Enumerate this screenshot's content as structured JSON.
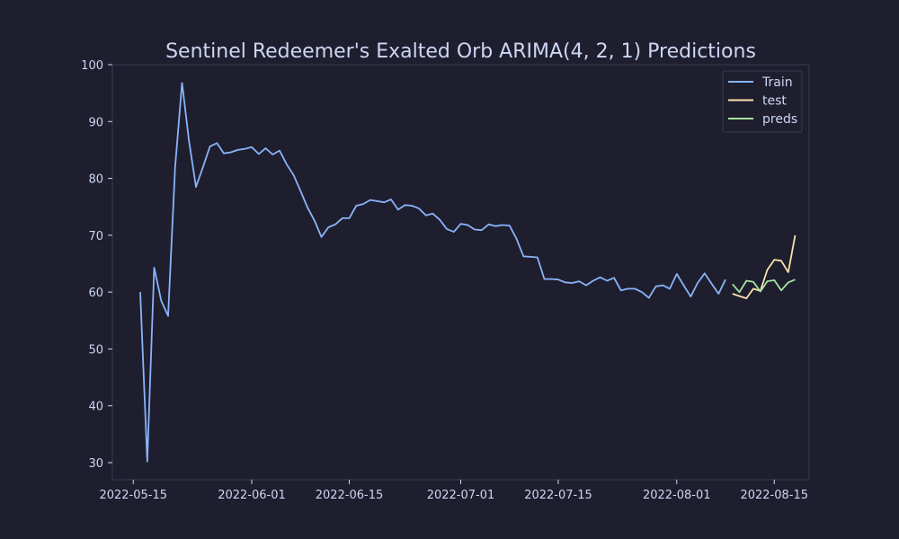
{
  "chart_data": {
    "type": "line",
    "title": "Sentinel Redeemer's Exalted Orb ARIMA(4, 2, 1) Predictions",
    "xlabel": "",
    "ylabel": "",
    "ylim": [
      27,
      100
    ],
    "xlim": [
      "2022-05-12",
      "2022-08-20"
    ],
    "yticks": [
      30,
      40,
      50,
      60,
      70,
      80,
      90,
      100
    ],
    "xticks": [
      "2022-05-15",
      "2022-06-01",
      "2022-06-15",
      "2022-07-01",
      "2022-07-15",
      "2022-08-01",
      "2022-08-15"
    ],
    "grid": false,
    "legend_position": "top-right",
    "series": [
      {
        "name": "Train",
        "color": "#89b4fa",
        "points": [
          [
            "2022-05-16",
            60.0
          ],
          [
            "2022-05-17",
            30.2
          ],
          [
            "2022-05-18",
            64.3
          ],
          [
            "2022-05-19",
            58.5
          ],
          [
            "2022-05-20",
            55.8
          ],
          [
            "2022-05-21",
            82.0
          ],
          [
            "2022-05-22",
            96.8
          ],
          [
            "2022-05-23",
            86.5
          ],
          [
            "2022-05-24",
            78.5
          ],
          [
            "2022-05-25",
            82.0
          ],
          [
            "2022-05-26",
            85.6
          ],
          [
            "2022-05-27",
            86.2
          ],
          [
            "2022-05-28",
            84.4
          ],
          [
            "2022-05-29",
            84.6
          ],
          [
            "2022-05-30",
            85.0
          ],
          [
            "2022-05-31",
            85.2
          ],
          [
            "2022-06-01",
            85.5
          ],
          [
            "2022-06-02",
            84.3
          ],
          [
            "2022-06-03",
            85.3
          ],
          [
            "2022-06-04",
            84.2
          ],
          [
            "2022-06-05",
            84.9
          ],
          [
            "2022-06-06",
            82.5
          ],
          [
            "2022-06-07",
            80.6
          ],
          [
            "2022-06-08",
            77.8
          ],
          [
            "2022-06-09",
            74.9
          ],
          [
            "2022-06-10",
            72.6
          ],
          [
            "2022-06-11",
            69.7
          ],
          [
            "2022-06-12",
            71.4
          ],
          [
            "2022-06-13",
            71.9
          ],
          [
            "2022-06-14",
            73.0
          ],
          [
            "2022-06-15",
            73.0
          ],
          [
            "2022-06-16",
            75.2
          ],
          [
            "2022-06-17",
            75.5
          ],
          [
            "2022-06-18",
            76.2
          ],
          [
            "2022-06-19",
            76.0
          ],
          [
            "2022-06-20",
            75.8
          ],
          [
            "2022-06-21",
            76.3
          ],
          [
            "2022-06-22",
            74.5
          ],
          [
            "2022-06-23",
            75.3
          ],
          [
            "2022-06-24",
            75.2
          ],
          [
            "2022-06-25",
            74.7
          ],
          [
            "2022-06-26",
            73.5
          ],
          [
            "2022-06-27",
            73.8
          ],
          [
            "2022-06-28",
            72.7
          ],
          [
            "2022-06-29",
            71.1
          ],
          [
            "2022-06-30",
            70.6
          ],
          [
            "2022-07-01",
            72.0
          ],
          [
            "2022-07-02",
            71.8
          ],
          [
            "2022-07-03",
            71.0
          ],
          [
            "2022-07-04",
            70.9
          ],
          [
            "2022-07-05",
            71.9
          ],
          [
            "2022-07-06",
            71.6
          ],
          [
            "2022-07-07",
            71.8
          ],
          [
            "2022-07-08",
            71.7
          ],
          [
            "2022-07-09",
            69.4
          ],
          [
            "2022-07-10",
            66.3
          ],
          [
            "2022-07-11",
            66.2
          ],
          [
            "2022-07-12",
            66.1
          ],
          [
            "2022-07-13",
            62.3
          ],
          [
            "2022-07-14",
            62.3
          ],
          [
            "2022-07-15",
            62.2
          ],
          [
            "2022-07-16",
            61.7
          ],
          [
            "2022-07-17",
            61.6
          ],
          [
            "2022-07-18",
            61.9
          ],
          [
            "2022-07-19",
            61.2
          ],
          [
            "2022-07-20",
            62.0
          ],
          [
            "2022-07-21",
            62.6
          ],
          [
            "2022-07-22",
            62.0
          ],
          [
            "2022-07-23",
            62.5
          ],
          [
            "2022-07-24",
            60.3
          ],
          [
            "2022-07-25",
            60.6
          ],
          [
            "2022-07-26",
            60.6
          ],
          [
            "2022-07-27",
            60.0
          ],
          [
            "2022-07-28",
            59.0
          ],
          [
            "2022-07-29",
            61.0
          ],
          [
            "2022-07-30",
            61.2
          ],
          [
            "2022-07-31",
            60.6
          ],
          [
            "2022-08-01",
            63.2
          ],
          [
            "2022-08-02",
            61.2
          ],
          [
            "2022-08-03",
            59.2
          ],
          [
            "2022-08-04",
            61.6
          ],
          [
            "2022-08-05",
            63.3
          ],
          [
            "2022-08-06",
            61.5
          ],
          [
            "2022-08-07",
            59.7
          ],
          [
            "2022-08-08",
            62.2
          ]
        ]
      },
      {
        "name": "test",
        "color": "#f9e2af",
        "points": [
          [
            "2022-08-09",
            59.7
          ],
          [
            "2022-08-10",
            59.3
          ],
          [
            "2022-08-11",
            58.9
          ],
          [
            "2022-08-12",
            60.6
          ],
          [
            "2022-08-13",
            60.2
          ],
          [
            "2022-08-14",
            63.9
          ],
          [
            "2022-08-15",
            65.7
          ],
          [
            "2022-08-16",
            65.5
          ],
          [
            "2022-08-17",
            63.5
          ],
          [
            "2022-08-18",
            70.0
          ]
        ]
      },
      {
        "name": "preds",
        "color": "#a6e3a1",
        "points": [
          [
            "2022-08-09",
            61.4
          ],
          [
            "2022-08-10",
            60.0
          ],
          [
            "2022-08-11",
            62.0
          ],
          [
            "2022-08-12",
            61.8
          ],
          [
            "2022-08-13",
            60.1
          ],
          [
            "2022-08-14",
            61.9
          ],
          [
            "2022-08-15",
            62.1
          ],
          [
            "2022-08-16",
            60.3
          ],
          [
            "2022-08-17",
            61.7
          ],
          [
            "2022-08-18",
            62.2
          ]
        ]
      }
    ]
  }
}
